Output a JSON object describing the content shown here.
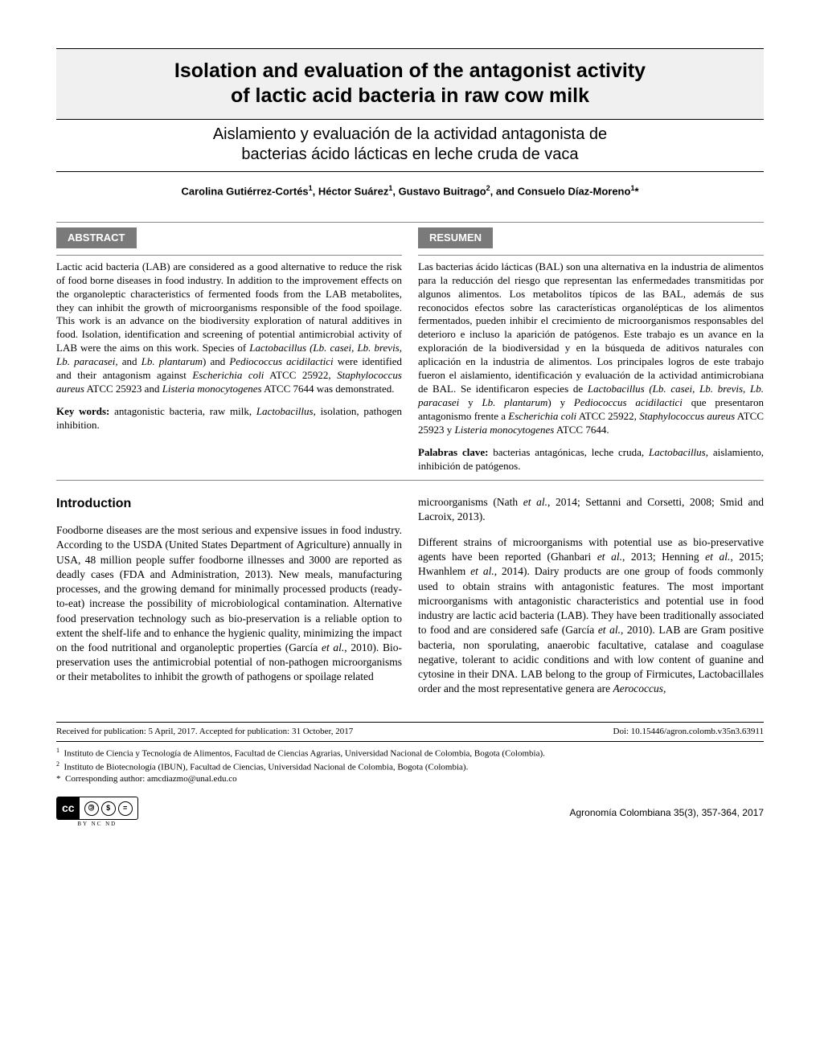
{
  "title_en_1": "Isolation and evaluation of the antagonist activity",
  "title_en_2": "of lactic acid bacteria in raw cow milk",
  "title_es_1": "Aislamiento y evaluación de la actividad antagonista de",
  "title_es_2": "bacterias ácido lácticas en leche cruda de vaca",
  "authors_html": "Carolina Gutiérrez-Cortés<sup>1</sup>, Héctor Suárez<sup>1</sup>, Gustavo Buitrago<sup>2</sup>, and Consuelo Díaz-Moreno<sup>1</sup>*",
  "abstract_label": "ABSTRACT",
  "resumen_label": "RESUMEN",
  "abstract_body": "Lactic acid bacteria (LAB) are considered as a good alternative to reduce the risk of food borne diseases in food industry. In addition to the improvement effects on the organoleptic characteristics of fermented foods from the LAB metabolites, they can inhibit the growth of microorganisms responsible of the food spoilage. This work is an advance on the biodiversity exploration of natural additives in food. Isolation, identification and screening of potential antimicrobial activity of LAB were the aims on this work. Species of <i>Lactobacillus (Lb. casei, Lb. brevis, Lb. paracasei,</i> and <i>Lb. plantarum</i>) and <i>Pediococcus acidilactici</i> were identified and their antagonism against <i>Escherichia coli</i> ATCC 25922, <i>Staphylococcus aureus</i> ATCC 25923 and <i>Listeria monocytogenes</i> ATCC 7644 was demonstrated.",
  "resumen_body": "Las bacterias ácido lácticas (BAL) son una alternativa en la industria de alimentos para la reducción del riesgo que representan las enfermedades transmitidas por algunos alimentos. Los metabolitos típicos de las BAL, además de sus reconocidos efectos sobre las características organolépticas de los alimentos fermentados, pueden inhibir el crecimiento de microorganismos responsables del deterioro e incluso la aparición de patógenos. Este trabajo es un avance en la exploración de la biodiversidad y en la búsqueda de aditivos naturales con aplicación en la industria de alimentos. Los principales logros de este trabajo fueron el aislamiento, identificación y evaluación de la actividad antimicrobiana de BAL. Se identificaron especies de <i>Lactobacillus (Lb. casei, Lb. brevis, Lb. paracasei</i> y <i>Lb. plantarum</i>) y <i>Pediococcus acidilactici</i> que presentaron antagonismo frente a <i>Escherichia coli</i> ATCC 25922, <i>Staphylococcus aureus</i> ATCC 25923 y <i>Listeria monocytogenes</i> ATCC 7644.",
  "keywords_label": "Key words:",
  "keywords_body": " antagonistic bacteria, raw milk, <i>Lactobacillus</i>, isolation, pathogen inhibition.",
  "palabras_label": "Palabras clave:",
  "palabras_body": " bacterias antagónicas, leche cruda, <i>Lactobacillus</i>, aislamiento, inhibición de patógenos.",
  "intro_heading": "Introduction",
  "intro_col1_p1": "Foodborne diseases are the most serious and expensive issues in food industry. According to the USDA (United States Department of Agriculture) annually in USA, 48 million people suffer foodborne illnesses and 3000 are reported as deadly cases (FDA and Administration, 2013). New meals, manufacturing processes, and the growing demand for minimally processed products (ready-to-eat) increase the possibility of microbiological contamination. Alternative food preservation technology such as bio-preservation is a reliable option to extent the shelf-life and to enhance the hygienic quality, minimizing the impact on the food nutritional and organoleptic properties (García <i>et al.</i>, 2010). Bio-preservation uses the antimicrobial potential of non-pathogen microorganisms or their metabolites to inhibit the growth of pathogens or spoilage related",
  "intro_col2_p1": "microorganisms (Nath <i>et al.</i>, 2014; Settanni and Corsetti, 2008; Smid and Lacroix, 2013).",
  "intro_col2_p2": "Different strains of microorganisms with potential use as bio-preservative agents have been reported (Ghanbari <i>et al.</i>, 2013; Henning <i>et al.</i>, 2015; Hwanhlem <i>et al.</i>, 2014). Dairy products are one group of foods commonly used to obtain strains with antagonistic features. The most important microorganisms with antagonistic characteristics and potential use in food industry are lactic acid bacteria (LAB). They have been traditionally associated to food and are considered safe (García <i>et al.</i>, 2010). LAB are Gram positive bacteria, non sporulating, anaerobic facultative, catalase and coagulase negative, tolerant to acidic conditions and with low content of guanine and cytosine in their DNA. LAB belong to the group of Firmicutes, Lactobacillales order and the most representative genera are <i>Aerococcus,</i>",
  "received": "Received for publication: 5 April, 2017. Accepted for publication: 31 October, 2017",
  "doi": "Doi: 10.15446/agron.colomb.v35n3.63911",
  "affil1": "Instituto de Ciencia y Tecnología de Alimentos, Facultad de Ciencias Agrarias, Universidad Nacional de Colombia, Bogota (Colombia).",
  "affil2": "Instituto de Biotecnología (IBUN), Facultad de Ciencias, Universidad Nacional de Colombia, Bogota (Colombia).",
  "corresponding": "Corresponding author: amcdiazmo@unal.edu.co",
  "cc_left": "cc",
  "cc_sub": "BY   NC   ND",
  "journal": "Agronomía Colombiana 35(3), 357-364, 2017"
}
